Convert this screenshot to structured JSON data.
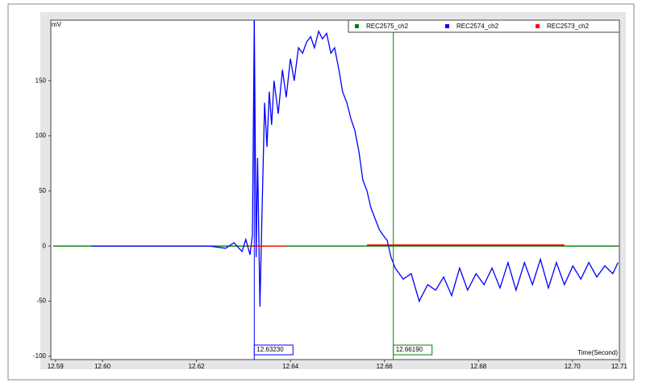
{
  "chart_data": {
    "type": "line",
    "y_label": "mV",
    "x_label": "Time(Second)",
    "xlim": [
      12.589,
      12.71
    ],
    "ylim": [
      -103,
      205
    ],
    "xticks": [
      12.59,
      {
        "value": 12.6,
        "label": "12.60"
      },
      12.62,
      12.64,
      12.66,
      12.68,
      {
        "value": 12.7,
        "label": "12.70"
      },
      12.71
    ],
    "yticks": [
      -100,
      -50,
      0,
      50,
      100,
      150
    ],
    "series": [
      {
        "name": "REC2575_ch2",
        "color": "#008000",
        "x": [
          12.5895,
          12.7099
        ],
        "values": [
          0,
          0
        ]
      },
      {
        "name": "REC2574_ch2",
        "color": "#0000ff",
        "x": [
          12.5976,
          12.6228,
          12.6262,
          12.628,
          12.6297,
          12.6305,
          12.6314,
          12.6319,
          12.6323,
          12.6327,
          12.633,
          12.6335,
          12.634,
          12.6345,
          12.635,
          12.6355,
          12.636,
          12.6365,
          12.6374,
          12.6383,
          12.6391,
          12.64,
          12.6408,
          12.6417,
          12.6426,
          12.6434,
          12.6443,
          12.6451,
          12.646,
          12.6468,
          12.6477,
          12.6486,
          12.6494,
          12.6503,
          12.6511,
          12.652,
          12.6529,
          12.6537,
          12.6546,
          12.6554,
          12.6563,
          12.6571,
          12.658,
          12.6589,
          12.6597,
          12.6606,
          12.6614,
          12.6623,
          12.664,
          12.6657,
          12.6674,
          12.6692,
          12.6709,
          12.6726,
          12.6743,
          12.676,
          12.6777,
          12.6795,
          12.6812,
          12.6829,
          12.6846,
          12.6863,
          12.688,
          12.6898,
          12.6915,
          12.6932,
          12.6949,
          12.6966,
          12.6983,
          12.7001,
          12.7018,
          12.7035,
          12.7052,
          12.7069,
          12.7086,
          12.7097
        ],
        "values": [
          0,
          0,
          -2,
          3,
          -5,
          6,
          -8,
          10,
          205,
          -10,
          80,
          -55,
          40,
          130,
          90,
          140,
          110,
          150,
          120,
          160,
          135,
          170,
          150,
          180,
          175,
          185,
          190,
          180,
          195,
          188,
          193,
          175,
          180,
          160,
          140,
          130,
          115,
          105,
          85,
          60,
          50,
          35,
          25,
          15,
          10,
          5,
          -10,
          -20,
          -30,
          -25,
          -50,
          -35,
          -40,
          -28,
          -45,
          -20,
          -40,
          -25,
          -35,
          -20,
          -38,
          -15,
          -40,
          -15,
          -35,
          -12,
          -38,
          -15,
          -35,
          -18,
          -30,
          -15,
          -28,
          -18,
          -25,
          -15
        ]
      },
      {
        "name": "REC2573_ch2",
        "color": "#ff0000",
        "x": [
          12.6314,
          12.6391,
          12.65,
          12.6563,
          12.6983,
          12.7,
          12.7097
        ],
        "values": [
          0,
          0,
          null,
          1,
          1,
          null,
          0
        ]
      }
    ],
    "cursors": [
      {
        "value": 12.6323,
        "label": "12.63230",
        "color": "#0000ff"
      },
      {
        "value": 12.6619,
        "label": "12.66190",
        "color": "#008000"
      }
    ]
  }
}
